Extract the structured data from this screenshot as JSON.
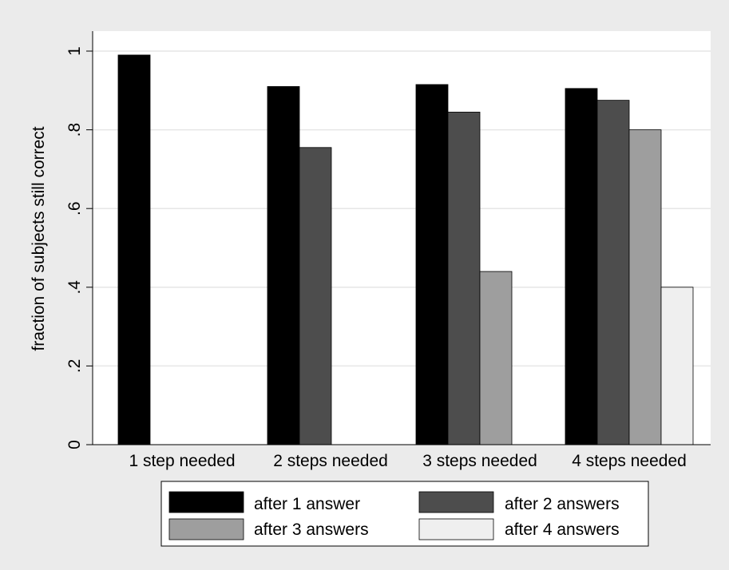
{
  "chart_data": {
    "type": "bar",
    "ylabel": "fraction of subjects still correct",
    "xlabel": "",
    "ylim": [
      0,
      1
    ],
    "yticks": [
      0,
      0.2,
      0.4,
      0.6,
      0.8,
      1
    ],
    "ytick_labels": [
      "0",
      ".2",
      ".4",
      ".6",
      ".8",
      "1"
    ],
    "grid": true,
    "legend_position": "bottom",
    "categories": [
      "1 step needed",
      "2 steps needed",
      "3 steps needed",
      "4 steps needed"
    ],
    "series": [
      {
        "name": "after 1 answer",
        "color": "#000000",
        "values": [
          0.99,
          0.91,
          0.915,
          0.905
        ]
      },
      {
        "name": "after 2 answers",
        "color": "#4d4d4d",
        "values": [
          null,
          0.755,
          0.845,
          0.875
        ]
      },
      {
        "name": "after 3 answers",
        "color": "#9e9e9e",
        "values": [
          null,
          null,
          0.44,
          0.8
        ]
      },
      {
        "name": "after 4 answers",
        "color": "#efefef",
        "values": [
          null,
          null,
          null,
          0.4
        ]
      }
    ]
  }
}
